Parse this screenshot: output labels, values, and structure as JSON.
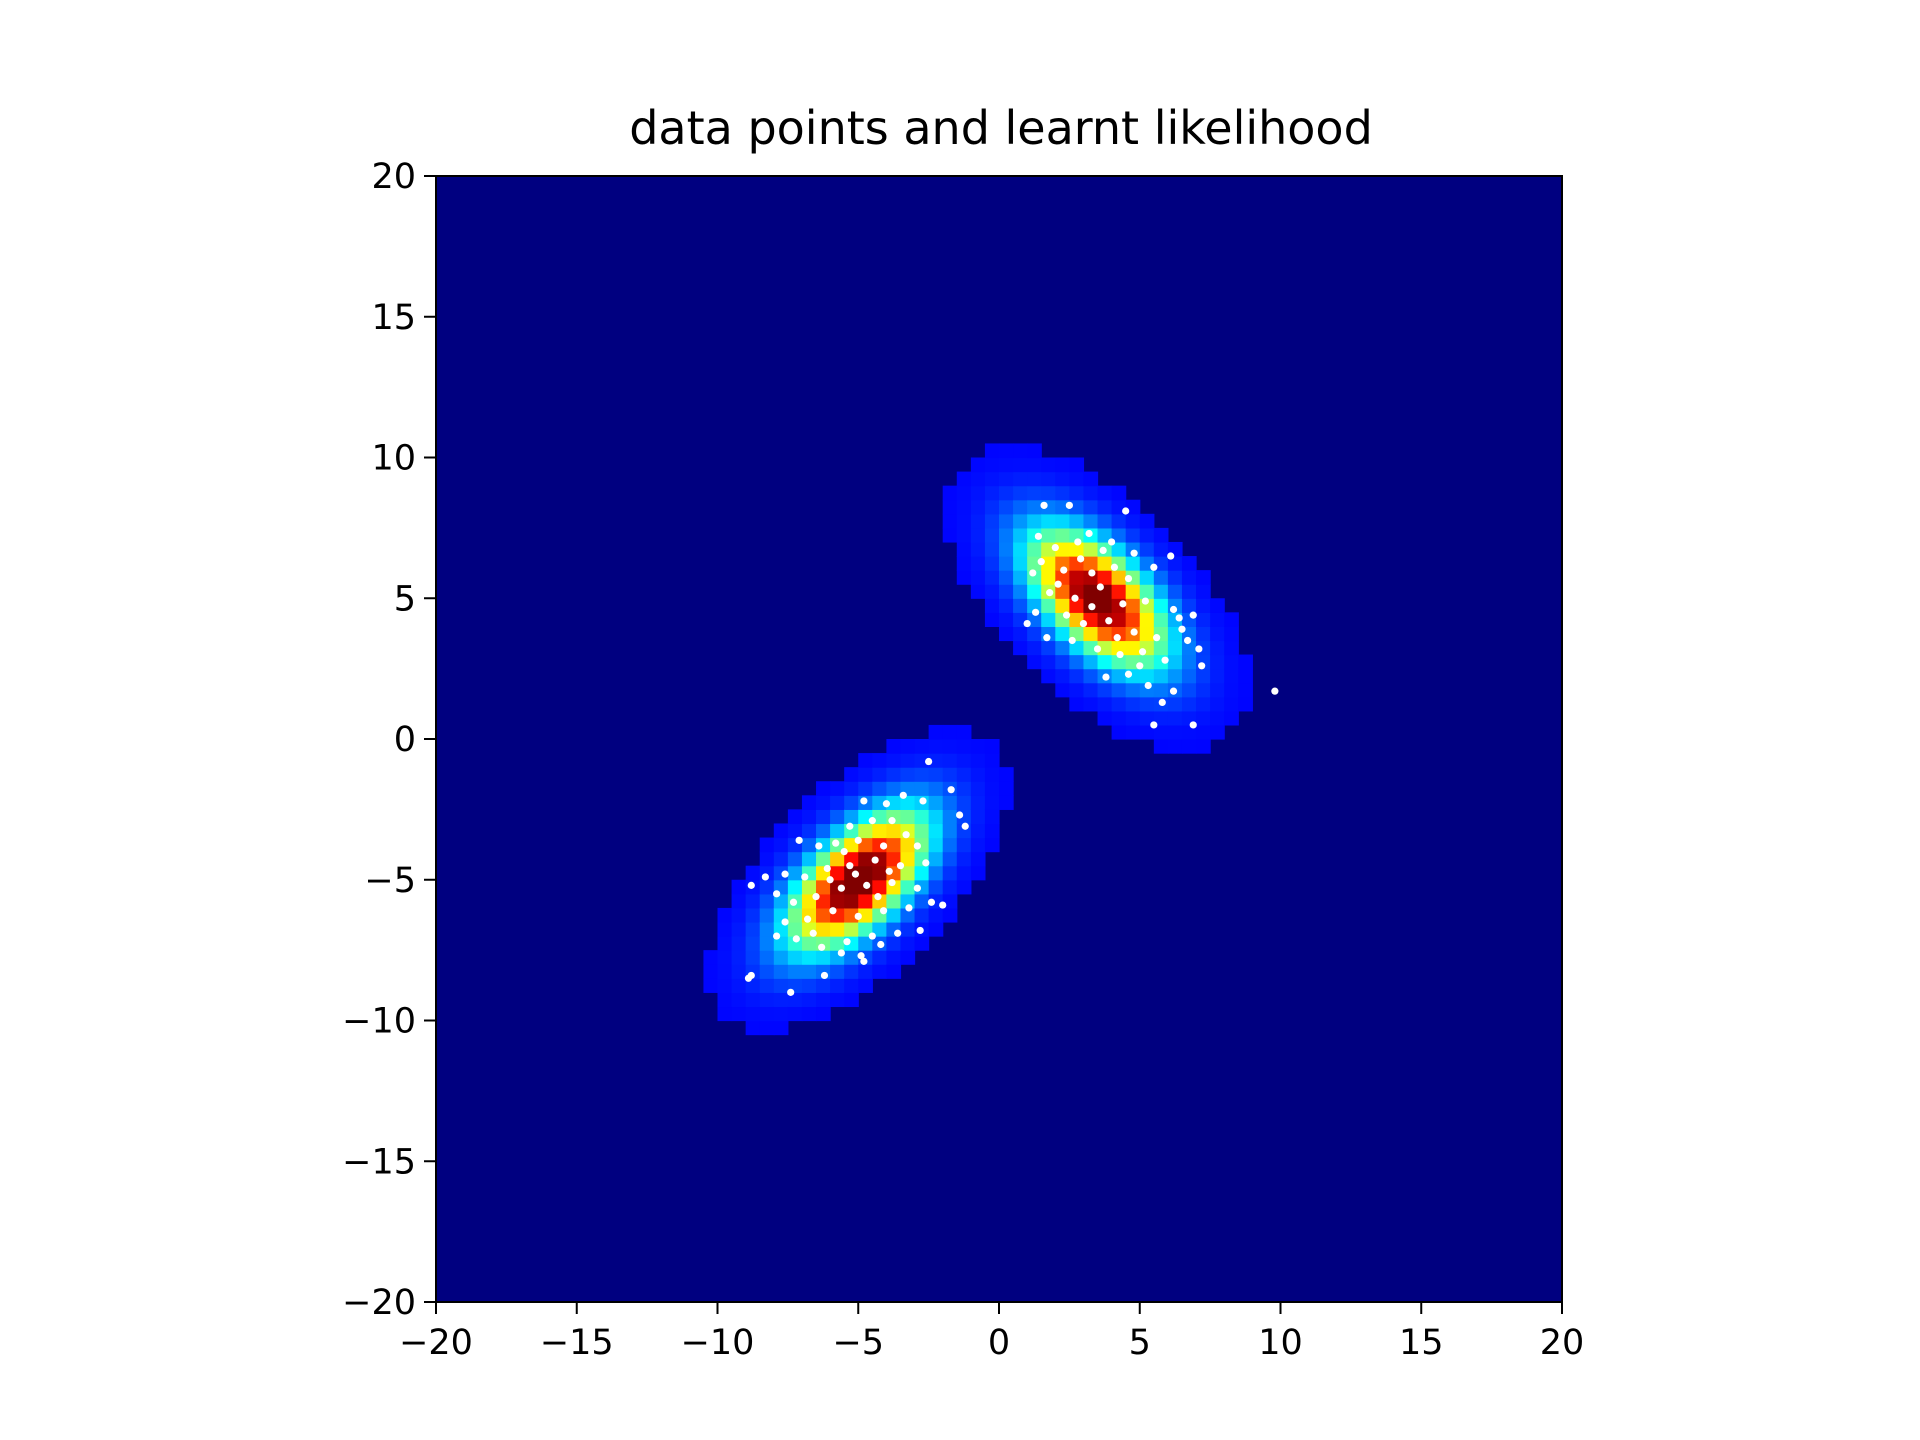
{
  "chart_data": {
    "type": "heatmap",
    "title": "data points and learnt likelihood",
    "xlabel": "",
    "ylabel": "",
    "xlim": [
      -20,
      20
    ],
    "ylim": [
      -20,
      20
    ],
    "x_ticks": [
      -20,
      -15,
      -10,
      -5,
      0,
      5,
      10,
      15,
      20
    ],
    "y_ticks": [
      -20,
      -15,
      -10,
      -5,
      0,
      5,
      10,
      15,
      20
    ],
    "x_tick_labels": [
      "−20",
      "−15",
      "−10",
      "−5",
      "0",
      "5",
      "10",
      "15",
      "20"
    ],
    "y_tick_labels": [
      "−20",
      "−15",
      "−10",
      "−5",
      "0",
      "5",
      "10",
      "15",
      "20"
    ],
    "grid": false,
    "legend": "none",
    "colormap": "jet",
    "heatmap_resolution": 0.5,
    "components": [
      {
        "mean": [
          3.5,
          5.0
        ],
        "var": [
          2.6,
          2.6
        ],
        "cov": -1.5,
        "weight": 0.5
      },
      {
        "mean": [
          -5.0,
          -5.0
        ],
        "var": [
          2.6,
          2.6
        ],
        "cov": 1.6,
        "weight": 0.5
      }
    ],
    "scatter_points": [
      [
        1.6,
        8.3
      ],
      [
        2.5,
        8.3
      ],
      [
        4.5,
        8.1
      ],
      [
        1.4,
        7.2
      ],
      [
        3.2,
        7.3
      ],
      [
        2.0,
        6.8
      ],
      [
        4.0,
        7.0
      ],
      [
        4.8,
        6.6
      ],
      [
        1.2,
        5.9
      ],
      [
        2.3,
        6.0
      ],
      [
        3.3,
        5.9
      ],
      [
        4.1,
        6.1
      ],
      [
        5.5,
        6.1
      ],
      [
        6.1,
        6.5
      ],
      [
        1.8,
        5.2
      ],
      [
        2.7,
        5.0
      ],
      [
        3.6,
        5.4
      ],
      [
        4.4,
        4.8
      ],
      [
        5.2,
        4.9
      ],
      [
        6.2,
        4.6
      ],
      [
        1.3,
        4.5
      ],
      [
        2.4,
        4.4
      ],
      [
        3.0,
        4.1
      ],
      [
        3.9,
        4.2
      ],
      [
        4.8,
        3.8
      ],
      [
        5.6,
        3.6
      ],
      [
        6.4,
        4.3
      ],
      [
        6.9,
        4.4
      ],
      [
        1.0,
        4.1
      ],
      [
        1.7,
        3.6
      ],
      [
        2.6,
        3.5
      ],
      [
        3.5,
        3.2
      ],
      [
        4.3,
        3.0
      ],
      [
        5.1,
        3.1
      ],
      [
        5.9,
        2.8
      ],
      [
        6.7,
        3.5
      ],
      [
        7.2,
        2.6
      ],
      [
        3.8,
        2.2
      ],
      [
        4.6,
        2.3
      ],
      [
        5.3,
        1.9
      ],
      [
        6.2,
        1.7
      ],
      [
        5.8,
        1.3
      ],
      [
        5.5,
        0.5
      ],
      [
        6.9,
        0.5
      ],
      [
        9.8,
        1.7
      ],
      [
        2.9,
        6.4
      ],
      [
        3.7,
        6.7
      ],
      [
        4.6,
        5.7
      ],
      [
        2.1,
        5.5
      ],
      [
        3.3,
        4.7
      ],
      [
        4.2,
        3.6
      ],
      [
        5.0,
        2.6
      ],
      [
        7.1,
        3.2
      ],
      [
        6.5,
        3.9
      ],
      [
        2.8,
        7.0
      ],
      [
        1.5,
        6.3
      ],
      [
        -2.5,
        -0.8
      ],
      [
        -1.7,
        -1.8
      ],
      [
        -1.4,
        -2.7
      ],
      [
        -1.2,
        -3.1
      ],
      [
        -2.7,
        -2.2
      ],
      [
        -3.4,
        -2.0
      ],
      [
        -4.0,
        -2.3
      ],
      [
        -4.8,
        -2.2
      ],
      [
        -3.8,
        -2.9
      ],
      [
        -4.5,
        -2.9
      ],
      [
        -5.3,
        -3.1
      ],
      [
        -3.3,
        -3.4
      ],
      [
        -2.9,
        -3.8
      ],
      [
        -4.1,
        -3.8
      ],
      [
        -5.0,
        -3.6
      ],
      [
        -5.8,
        -3.7
      ],
      [
        -6.4,
        -3.8
      ],
      [
        -7.1,
        -3.6
      ],
      [
        -2.6,
        -4.4
      ],
      [
        -3.5,
        -4.5
      ],
      [
        -4.4,
        -4.3
      ],
      [
        -5.3,
        -4.5
      ],
      [
        -6.1,
        -4.6
      ],
      [
        -6.9,
        -4.9
      ],
      [
        -7.6,
        -4.8
      ],
      [
        -8.3,
        -4.9
      ],
      [
        -8.8,
        -5.2
      ],
      [
        -2.9,
        -5.3
      ],
      [
        -3.8,
        -5.1
      ],
      [
        -4.7,
        -5.2
      ],
      [
        -5.6,
        -5.3
      ],
      [
        -6.5,
        -5.6
      ],
      [
        -7.3,
        -5.8
      ],
      [
        -7.9,
        -5.5
      ],
      [
        -2.4,
        -5.8
      ],
      [
        -2.0,
        -5.9
      ],
      [
        -3.2,
        -6.0
      ],
      [
        -4.1,
        -6.1
      ],
      [
        -5.0,
        -6.3
      ],
      [
        -5.9,
        -6.1
      ],
      [
        -6.8,
        -6.4
      ],
      [
        -7.6,
        -6.5
      ],
      [
        -2.8,
        -6.8
      ],
      [
        -3.6,
        -6.9
      ],
      [
        -4.5,
        -7.0
      ],
      [
        -5.4,
        -7.2
      ],
      [
        -6.3,
        -7.4
      ],
      [
        -7.2,
        -7.1
      ],
      [
        -7.9,
        -7.0
      ],
      [
        -4.2,
        -7.3
      ],
      [
        -4.9,
        -7.7
      ],
      [
        -5.6,
        -7.6
      ],
      [
        -6.2,
        -8.4
      ],
      [
        -8.8,
        -8.4
      ],
      [
        -8.9,
        -8.5
      ],
      [
        -7.4,
        -9.0
      ],
      [
        -4.8,
        -7.9
      ],
      [
        -5.1,
        -4.8
      ],
      [
        -4.3,
        -5.6
      ],
      [
        -5.5,
        -4.0
      ],
      [
        -6.0,
        -5.0
      ],
      [
        -3.9,
        -4.7
      ],
      [
        -6.6,
        -6.9
      ]
    ]
  }
}
